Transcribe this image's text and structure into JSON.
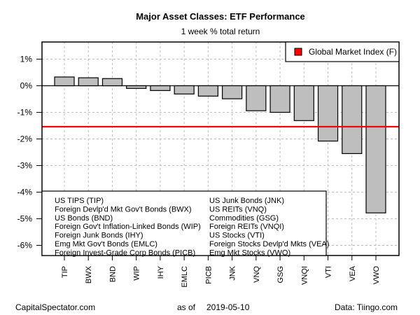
{
  "chart_data": {
    "type": "bar",
    "title": "Major Asset Classes: ETF Performance",
    "subtitle": "1 week % total return",
    "xlabel": "",
    "ylabel": "",
    "ylim": [
      -6.5,
      1.65
    ],
    "yticks": [
      1,
      0,
      -1,
      -2,
      -3,
      -4,
      -5,
      -6
    ],
    "ytick_labels": [
      "1%",
      "0%",
      "-1%",
      "-2%",
      "-3%",
      "-4%",
      "-5%",
      "-6%"
    ],
    "grid": true,
    "categories": [
      "TIP",
      "BWX",
      "BND",
      "WIP",
      "IHY",
      "EMLC",
      "PICB",
      "JNK",
      "VNQ",
      "GSG",
      "VNQI",
      "VTI",
      "VEA",
      "VWO"
    ],
    "values": [
      0.33,
      0.3,
      0.27,
      -0.1,
      -0.18,
      -0.31,
      -0.39,
      -0.49,
      -0.94,
      -1.0,
      -1.31,
      -2.08,
      -2.55,
      -4.78
    ],
    "bar_color": "#bebebe",
    "reference_line": {
      "label": "Global Market Index (F)",
      "value": -1.54,
      "color": "#ff0000"
    },
    "reference_legend_placement": "top-right",
    "name_legend_placement": "bottom-left",
    "name_legend": {
      "left_column": [
        "US TIPS (TIP)",
        "Foreign Devlp'd Mkt Gov't Bonds (BWX)",
        "US Bonds (BND)",
        "Foreign Gov't Inflation-Linked Bonds (WIP)",
        "Foreign Junk Bonds (IHY)",
        "Emg Mkt Gov't Bonds (EMLC)",
        "Foreign Invest-Grade Corp Bonds (PICB)"
      ],
      "right_column": [
        "US Junk Bonds (JNK)",
        "US REITs (VNQ)",
        "Commodities (GSG)",
        "Foreign REITs (VNQI)",
        "US Stocks (VTI)",
        "Foreign Stocks Devlp'd Mkts (VEA)",
        "Emg Mkt Stocks (VWO)"
      ]
    }
  },
  "footer": {
    "left": "CapitalSpectator.com",
    "center_prefix": "as of",
    "center_date": "2019-05-10",
    "right": "Data: Tiingo.com"
  }
}
